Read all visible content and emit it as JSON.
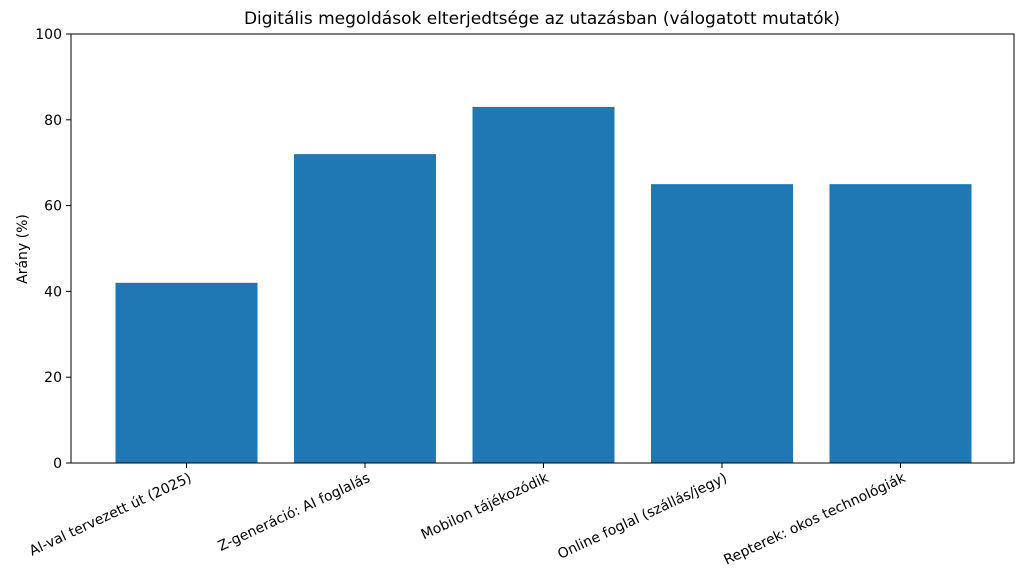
{
  "chart_data": {
    "type": "bar",
    "title": "Digitális megoldások elterjedtsége az utazásban (válogatott mutatók)",
    "xlabel": "",
    "ylabel": "Arány (%)",
    "ylim": [
      0,
      100
    ],
    "yticks": [
      0,
      20,
      40,
      60,
      80,
      100
    ],
    "categories": [
      "AI-val tervezett út (2025)",
      "Z-generáció: AI foglalás",
      "Mobilon tájékozódik",
      "Online foglal (szállás/jegy)",
      "Repterek: okos technológiák"
    ],
    "values": [
      42,
      72,
      83,
      65,
      65
    ],
    "bar_color": "#1f77b4",
    "grid": false,
    "legend": "none"
  }
}
